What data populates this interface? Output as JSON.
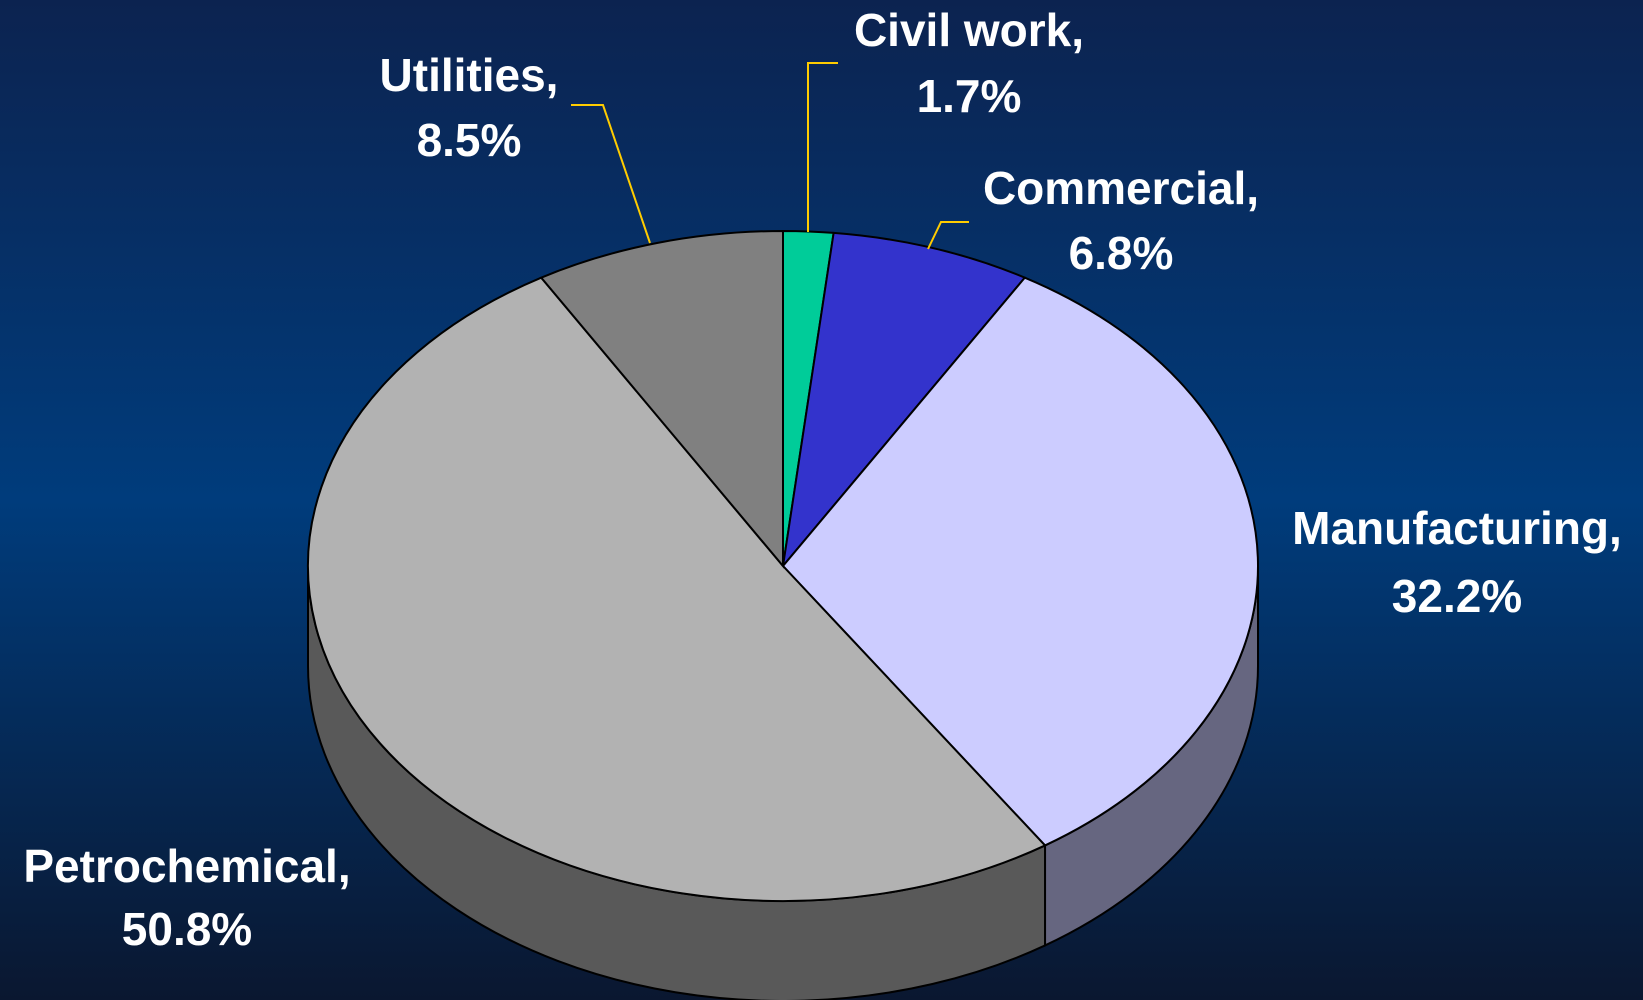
{
  "chart_data": {
    "type": "pie",
    "categories": [
      "Civil work,",
      "Commercial,",
      "Manufacturing,",
      "Petrochemical,",
      "Utilities,"
    ],
    "values": [
      1.7,
      6.8,
      32.2,
      50.8,
      8.5
    ],
    "value_labels": [
      "1.7%",
      "6.8%",
      "32.2%",
      "50.8%",
      "8.5%"
    ],
    "colors": [
      "#00cc99",
      "#3333cc",
      "#ccccff",
      "#b2b2b2",
      "#808080"
    ]
  }
}
